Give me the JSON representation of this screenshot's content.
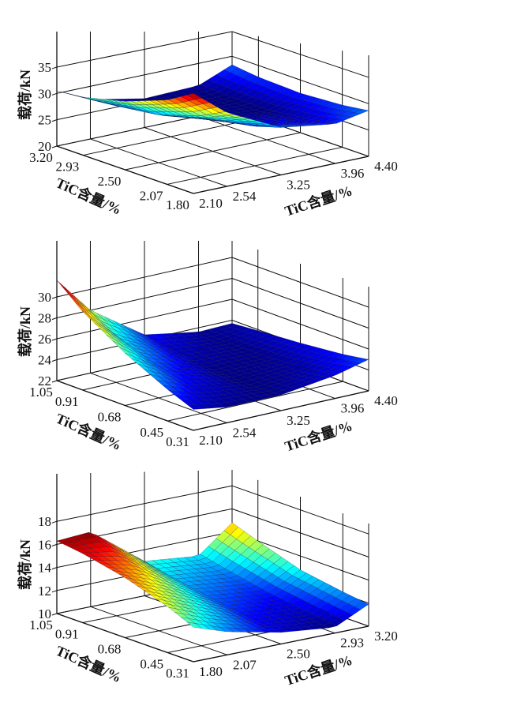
{
  "chart_data": [
    {
      "type": "surface",
      "zlabel": "载荷/kN",
      "xlabel": "TiC含量/%",
      "ylabel": "TiC含量/%",
      "x_ticks": [
        "1.80",
        "2.07",
        "2.50",
        "2.93",
        "3.20"
      ],
      "y_ticks": [
        "2.10",
        "2.54",
        "3.25",
        "3.96",
        "4.40"
      ],
      "z_ticks": [
        "20",
        "25",
        "30",
        "35"
      ],
      "xlim": [
        1.8,
        3.2
      ],
      "ylim": [
        2.1,
        4.4
      ],
      "zlim": [
        20,
        35
      ],
      "grid": true,
      "colormap": "jet",
      "x": [
        1.8,
        2.07,
        2.5,
        2.93,
        3.2
      ],
      "y": [
        2.1,
        2.54,
        3.25,
        3.96,
        4.4
      ],
      "z": [
        [
          39.0,
          34.0,
          29.0,
          27.5,
          28.7
        ],
        [
          36.0,
          31.5,
          27.5,
          26.5,
          28.0
        ],
        [
          33.0,
          29.0,
          26.0,
          25.5,
          27.5
        ],
        [
          31.0,
          28.0,
          25.5,
          25.5,
          27.8
        ],
        [
          30.5,
          27.5,
          25.5,
          25.8,
          28.4
        ]
      ]
    },
    {
      "type": "surface",
      "zlabel": "载荷/kN",
      "xlabel": "TiC含量/%",
      "ylabel": "TiC含量/%",
      "x_ticks": [
        "0.31",
        "0.45",
        "0.68",
        "0.91",
        "1.05"
      ],
      "y_ticks": [
        "2.10",
        "2.54",
        "3.25",
        "3.96",
        "4.40"
      ],
      "z_ticks": [
        "22",
        "24",
        "26",
        "28",
        "30"
      ],
      "xlim": [
        0.31,
        1.05
      ],
      "ylim": [
        2.1,
        4.4
      ],
      "zlim": [
        22,
        30
      ],
      "grid": true,
      "colormap": "jet",
      "x": [
        0.31,
        0.45,
        0.68,
        0.91,
        1.05
      ],
      "y": [
        2.1,
        2.54,
        3.25,
        3.96,
        4.4
      ],
      "z": [
        [
          24.0,
          23.5,
          23.5,
          24.2,
          25.0
        ],
        [
          25.0,
          24.0,
          23.4,
          23.8,
          24.6
        ],
        [
          27.0,
          25.0,
          23.5,
          23.5,
          24.2
        ],
        [
          29.5,
          26.5,
          24.0,
          23.5,
          23.9
        ],
        [
          31.6,
          28.0,
          24.5,
          23.6,
          23.7
        ]
      ]
    },
    {
      "type": "surface",
      "zlabel": "载荷/kN",
      "xlabel": "TiC含量/%",
      "ylabel": "TiC含量/%",
      "x_ticks": [
        "0.31",
        "0.45",
        "0.68",
        "0.91",
        "1.05"
      ],
      "y_ticks": [
        "1.80",
        "2.07",
        "2.50",
        "2.93",
        "3.20"
      ],
      "z_ticks": [
        "10",
        "12",
        "14",
        "16",
        "18"
      ],
      "xlim": [
        0.31,
        1.05
      ],
      "ylim": [
        1.8,
        3.2
      ],
      "zlim": [
        10,
        18
      ],
      "grid": true,
      "colormap": "jet",
      "x": [
        0.31,
        0.45,
        0.68,
        0.91,
        1.05
      ],
      "y": [
        1.8,
        2.07,
        2.5,
        2.93,
        3.2
      ],
      "z": [
        [
          13.0,
          12.0,
          11.0,
          10.5,
          11.9
        ],
        [
          14.0,
          12.8,
          11.2,
          10.8,
          12.2
        ],
        [
          15.2,
          14.0,
          11.8,
          11.3,
          12.8
        ],
        [
          16.0,
          15.5,
          12.5,
          12.0,
          14.0
        ],
        [
          16.3,
          16.5,
          13.0,
          12.5,
          14.8
        ]
      ]
    }
  ]
}
